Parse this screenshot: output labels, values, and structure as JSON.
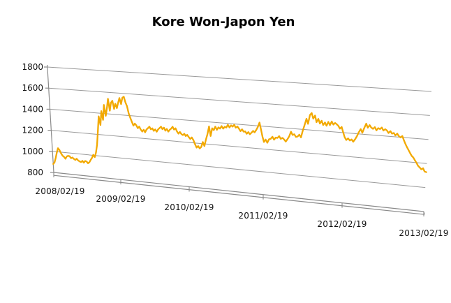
{
  "chart_data": {
    "type": "line",
    "title": "Kore Won-Japon Yen",
    "style": "excel-3d-sheared-line-chart",
    "grid": true,
    "legend": false,
    "ylim": [
      800,
      1800
    ],
    "y_step": 200,
    "y_tick_labels": [
      "1800",
      "1600",
      "1400",
      "1200",
      "1000",
      "800"
    ],
    "x_tick_labels": [
      "2008/02/19",
      "2009/02/19",
      "2010/02/19",
      "2011/02/19",
      "2012/02/19",
      "2013/02/19"
    ],
    "x_range": [
      "2008/02/19",
      "2013/02/19"
    ],
    "sampling": "4 points per month, 2008/02 through 2013/02 (241 points), values = KRW per 100 JPY read from plot",
    "values": [
      880,
      896,
      940,
      990,
      1035,
      1020,
      990,
      968,
      958,
      942,
      965,
      972,
      970,
      952,
      960,
      948,
      940,
      952,
      938,
      930,
      925,
      938,
      922,
      940,
      935,
      920,
      932,
      955,
      975,
      1005,
      985,
      1030,
      1100,
      1230,
      1370,
      1290,
      1420,
      1340,
      1480,
      1380,
      1450,
      1540,
      1430,
      1505,
      1525,
      1450,
      1500,
      1460,
      1510,
      1555,
      1500,
      1560,
      1570,
      1520,
      1485,
      1420,
      1380,
      1345,
      1310,
      1330,
      1315,
      1290,
      1305,
      1280,
      1262,
      1280,
      1258,
      1285,
      1298,
      1312,
      1290,
      1300,
      1278,
      1292,
      1272,
      1295,
      1308,
      1322,
      1300,
      1315,
      1288,
      1305,
      1282,
      1300,
      1312,
      1330,
      1305,
      1318,
      1290,
      1272,
      1288,
      1270,
      1262,
      1275,
      1255,
      1268,
      1250,
      1232,
      1248,
      1225,
      1190,
      1160,
      1175,
      1155,
      1170,
      1215,
      1180,
      1240,
      1290,
      1360,
      1275,
      1345,
      1330,
      1362,
      1335,
      1358,
      1348,
      1372,
      1350,
      1368,
      1362,
      1388,
      1365,
      1385,
      1375,
      1392,
      1368,
      1380,
      1362,
      1340,
      1358,
      1338,
      1342,
      1322,
      1338,
      1320,
      1335,
      1352,
      1340,
      1362,
      1390,
      1430,
      1372,
      1310,
      1262,
      1285,
      1258,
      1290,
      1295,
      1315,
      1290,
      1310,
      1308,
      1325,
      1302,
      1312,
      1300,
      1282,
      1305,
      1330,
      1372,
      1345,
      1352,
      1330,
      1335,
      1352,
      1330,
      1390,
      1440,
      1495,
      1452,
      1530,
      1548,
      1500,
      1528,
      1472,
      1502,
      1462,
      1488,
      1452,
      1475,
      1448,
      1482,
      1455,
      1488,
      1462,
      1478,
      1468,
      1455,
      1432,
      1448,
      1402,
      1362,
      1340,
      1355,
      1338,
      1348,
      1330,
      1352,
      1380,
      1415,
      1442,
      1412,
      1455,
      1492,
      1458,
      1482,
      1462,
      1452,
      1468,
      1442,
      1462,
      1455,
      1470,
      1445,
      1458,
      1448,
      1428,
      1445,
      1425,
      1432,
      1412,
      1428,
      1408,
      1398,
      1412,
      1378,
      1348,
      1322,
      1298,
      1275,
      1252,
      1240,
      1218,
      1198,
      1175,
      1162,
      1148,
      1158,
      1132,
      1128
    ],
    "line_color": "#F2A900",
    "gridline_color": "#9A9A9A",
    "axis_color": "#8A8A8A",
    "text_color": "#000000",
    "background_color": "#FFFFFF"
  }
}
